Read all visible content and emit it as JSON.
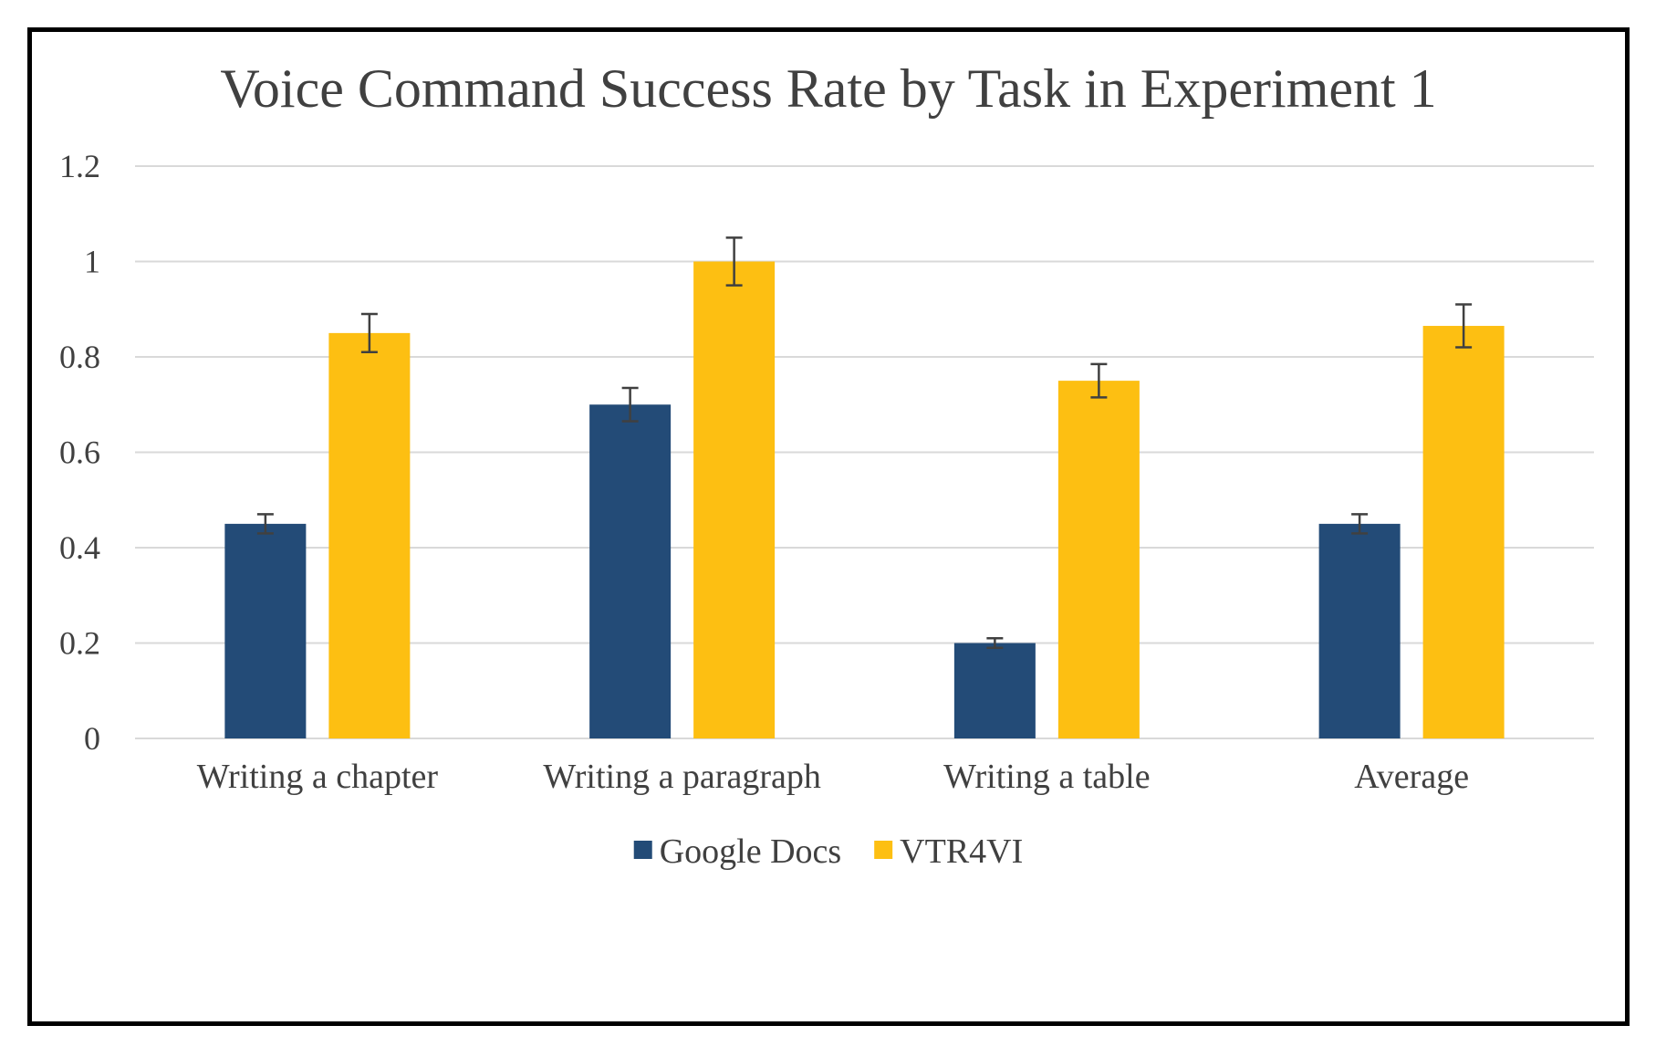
{
  "chart_data": {
    "type": "bar",
    "title": "Voice Command Success Rate by Task in Experiment 1",
    "xlabel": "",
    "ylabel": "",
    "categories": [
      "Writing a chapter",
      "Writing a paragraph",
      "Writing a table",
      "Average"
    ],
    "series": [
      {
        "name": "Google Docs",
        "color": "#234B77",
        "values": [
          0.45,
          0.7,
          0.2,
          0.45
        ],
        "errors": [
          0.02,
          0.035,
          0.01,
          0.02
        ]
      },
      {
        "name": "VTR4VI",
        "color": "#FDBF12",
        "values": [
          0.85,
          1.0,
          0.75,
          0.865
        ],
        "errors": [
          0.04,
          0.05,
          0.035,
          0.045
        ]
      }
    ],
    "ylim": [
      0,
      1.2
    ],
    "yticks": [
      0,
      0.2,
      0.4,
      0.6,
      0.8,
      1,
      1.2
    ],
    "ytick_labels": [
      "0",
      "0.2",
      "0.4",
      "0.6",
      "0.8",
      "1",
      "1.2"
    ],
    "grid": true,
    "legend_position": "bottom"
  },
  "colors": {
    "grid": "#D9D9D9",
    "text": "#404040",
    "error_bar": "#404040",
    "frame": "#000000"
  }
}
